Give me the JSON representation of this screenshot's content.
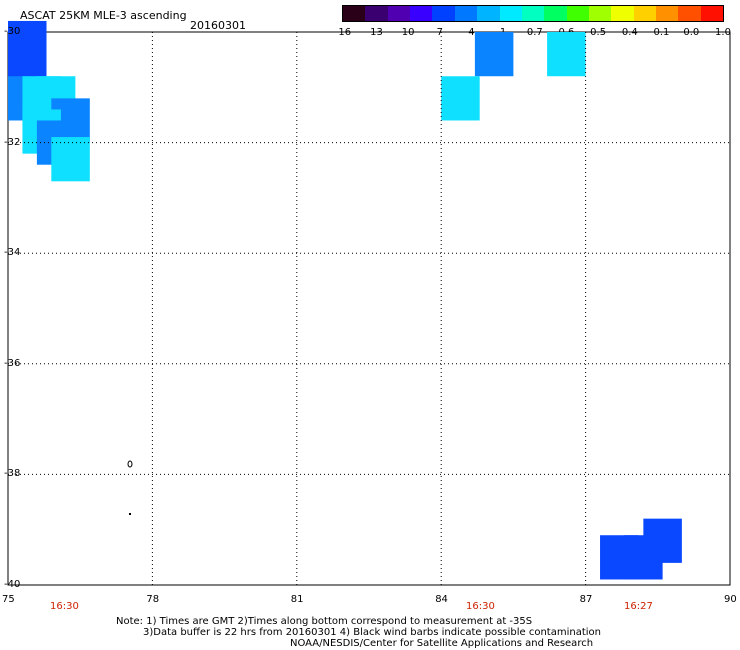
{
  "header": {
    "title": "ASCAT 25KM MLE-3 ascending",
    "date": "20160301"
  },
  "colorbar": {
    "colors": [
      "#2a0018",
      "#3b0070",
      "#5000b0",
      "#3a00ff",
      "#0040ff",
      "#0078ff",
      "#00b4ff",
      "#00eaff",
      "#00ffc0",
      "#00ff60",
      "#40ff00",
      "#a0ff00",
      "#f0ff00",
      "#ffd000",
      "#ff9000",
      "#ff5000",
      "#ff1000"
    ],
    "labels": [
      "-16",
      "-13",
      "-10",
      "-7",
      "-4",
      "-1",
      "-0.7",
      "-0.6",
      "-0.5",
      "-0.4",
      "-0.1",
      "0.0",
      "1.0"
    ]
  },
  "map": {
    "lat_labels": [
      "-30",
      "-32",
      "-34",
      "-36",
      "-38",
      "-40"
    ],
    "lon_labels": [
      "75",
      "78",
      "81",
      "84",
      "87",
      "90"
    ],
    "times": [
      "16:30",
      "16:30",
      "16:27"
    ]
  },
  "chart_data": {
    "type": "heatmap",
    "xlim": [
      75,
      90
    ],
    "ylim": [
      -40,
      -30
    ],
    "cells": [
      {
        "lon": 75.0,
        "lat": -30.2,
        "value": -4
      },
      {
        "lon": 75.0,
        "lat": -30.7,
        "value": -4
      },
      {
        "lon": 75.0,
        "lat": -31.2,
        "value": -1
      },
      {
        "lon": 75.3,
        "lat": -31.2,
        "value": -0.7
      },
      {
        "lon": 75.6,
        "lat": -31.2,
        "value": -0.7
      },
      {
        "lon": 75.9,
        "lat": -31.6,
        "value": -1
      },
      {
        "lon": 75.3,
        "lat": -31.8,
        "value": -0.7
      },
      {
        "lon": 75.6,
        "lat": -32.0,
        "value": -1
      },
      {
        "lon": 75.9,
        "lat": -32.3,
        "value": -0.7
      },
      {
        "lon": 84.7,
        "lat": -30.4,
        "value": -1
      },
      {
        "lon": 86.2,
        "lat": -30.4,
        "value": -0.7
      },
      {
        "lon": 84.0,
        "lat": -31.2,
        "value": -0.7
      },
      {
        "lon": 87.3,
        "lat": -39.5,
        "value": -4
      },
      {
        "lon": 87.8,
        "lat": -39.5,
        "value": -4
      },
      {
        "lon": 88.2,
        "lat": -39.2,
        "value": -4
      }
    ]
  },
  "notes": {
    "line1": "Note: 1) Times are GMT 2)Times along bottom correspond to measurement at -35S",
    "line2": "3)Data buffer is 22 hrs from 20160301 4) Black wind barbs indicate possible contamination",
    "line3": "NOAA/NESDIS/Center for Satellite Applications and Research"
  }
}
